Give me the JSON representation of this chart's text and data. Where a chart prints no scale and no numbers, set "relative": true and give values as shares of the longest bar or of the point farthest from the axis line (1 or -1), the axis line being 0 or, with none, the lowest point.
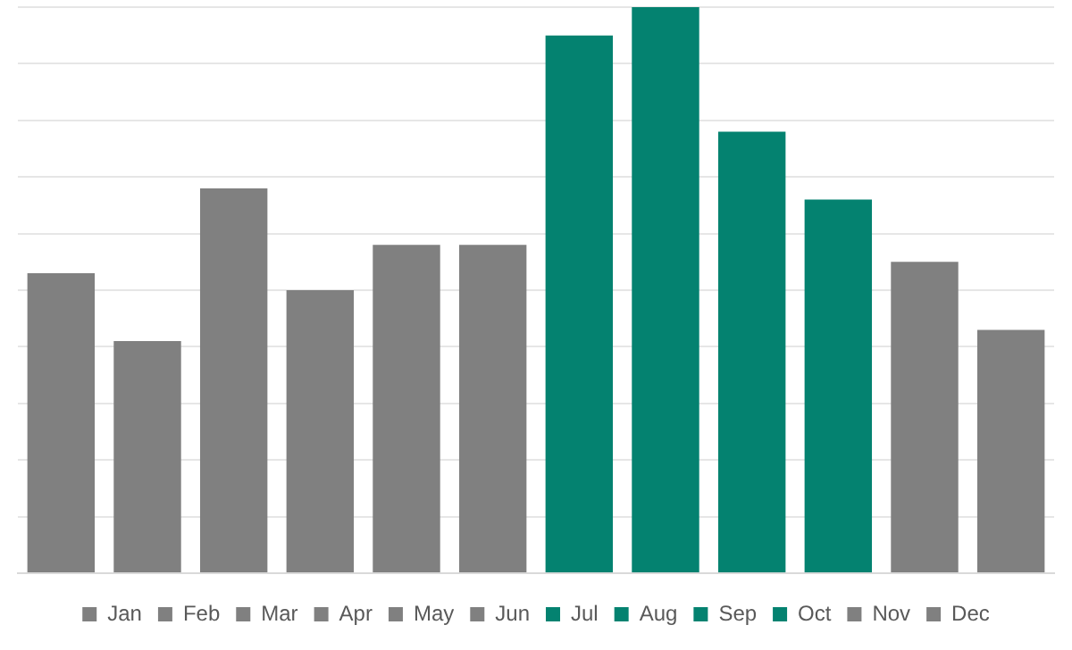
{
  "chart_data": {
    "type": "bar",
    "relative": true,
    "stacked": true,
    "grid": "y",
    "legend": "bottom",
    "categories": [
      null,
      null,
      null,
      null,
      null,
      null,
      null,
      null,
      null,
      null,
      null,
      null
    ],
    "series": [
      {
        "name": "Jan",
        "color": "#808080",
        "values": [
          0.53,
          null,
          null,
          null,
          null,
          null,
          null,
          null,
          null,
          null,
          null,
          null
        ]
      },
      {
        "name": "Feb",
        "color": "#808080",
        "values": [
          null,
          0.41,
          null,
          null,
          null,
          null,
          null,
          null,
          null,
          null,
          null,
          null
        ]
      },
      {
        "name": "Mar",
        "color": "#808080",
        "values": [
          null,
          null,
          0.68,
          null,
          null,
          null,
          null,
          null,
          null,
          null,
          null,
          null
        ]
      },
      {
        "name": "Apr",
        "color": "#808080",
        "values": [
          null,
          null,
          null,
          0.5,
          null,
          null,
          null,
          null,
          null,
          null,
          null,
          null
        ]
      },
      {
        "name": "May",
        "color": "#808080",
        "values": [
          null,
          null,
          null,
          null,
          0.58,
          null,
          null,
          null,
          null,
          null,
          null,
          null
        ]
      },
      {
        "name": "Jun",
        "color": "#808080",
        "values": [
          null,
          null,
          null,
          null,
          null,
          0.58,
          null,
          null,
          null,
          null,
          null,
          null
        ]
      },
      {
        "name": "Jul",
        "color": "#048270",
        "values": [
          null,
          null,
          null,
          null,
          null,
          null,
          0.95,
          null,
          null,
          null,
          null,
          null
        ]
      },
      {
        "name": "Aug",
        "color": "#048270",
        "values": [
          null,
          null,
          null,
          null,
          null,
          null,
          null,
          1,
          null,
          null,
          null,
          null
        ]
      },
      {
        "name": "Sep",
        "color": "#048270",
        "values": [
          null,
          null,
          null,
          null,
          null,
          null,
          null,
          null,
          0.78,
          null,
          null,
          null
        ]
      },
      {
        "name": "Oct",
        "color": "#048270",
        "values": [
          null,
          null,
          null,
          null,
          null,
          null,
          null,
          null,
          null,
          0.66,
          null,
          null
        ]
      },
      {
        "name": "Nov",
        "color": "#808080",
        "values": [
          null,
          null,
          null,
          null,
          null,
          null,
          null,
          null,
          null,
          null,
          0.55,
          null
        ]
      },
      {
        "name": "Dec",
        "color": "#808080",
        "values": [
          null,
          null,
          null,
          null,
          null,
          null,
          null,
          null,
          null,
          null,
          null,
          0.43
        ]
      }
    ]
  }
}
